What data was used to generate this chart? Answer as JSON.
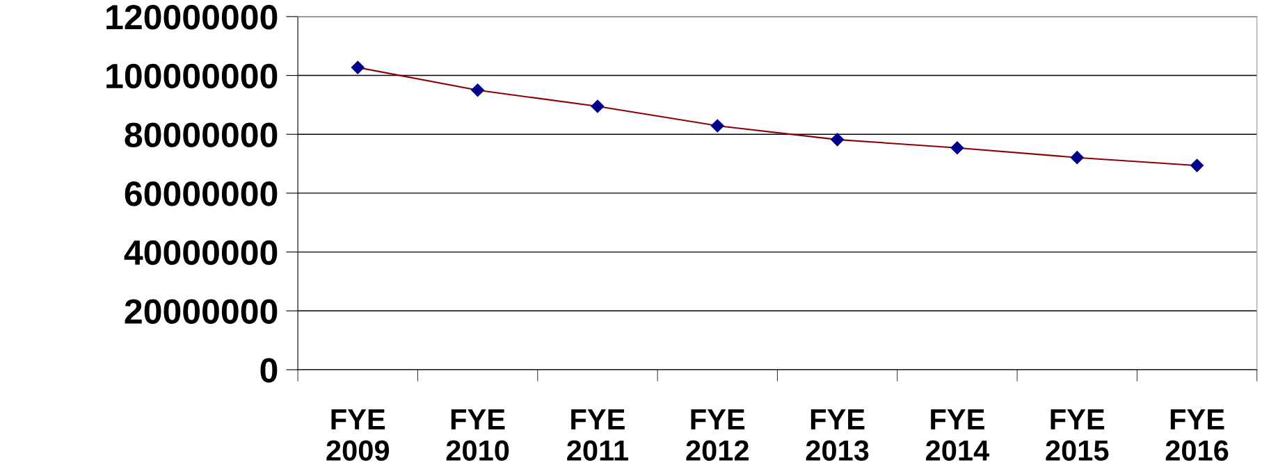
{
  "chart_data": {
    "type": "line",
    "categories": [
      "FYE\n2009",
      "FYE\n2010",
      "FYE\n2011",
      "FYE\n2012",
      "FYE\n2013",
      "FYE\n2014",
      "FYE\n2015",
      "FYE\n2016"
    ],
    "series": [
      {
        "color": "#8b0000",
        "values": [
          102700000,
          95000000,
          89500000,
          82900000,
          78200000,
          75400000,
          72100000,
          69400000
        ]
      }
    ],
    "ylim": [
      0,
      120000000
    ],
    "yticks": [
      0,
      20000000,
      40000000,
      60000000,
      80000000,
      100000000,
      120000000
    ],
    "grid": "y",
    "legend": false,
    "marker": "diamond",
    "line_style": "solid"
  }
}
